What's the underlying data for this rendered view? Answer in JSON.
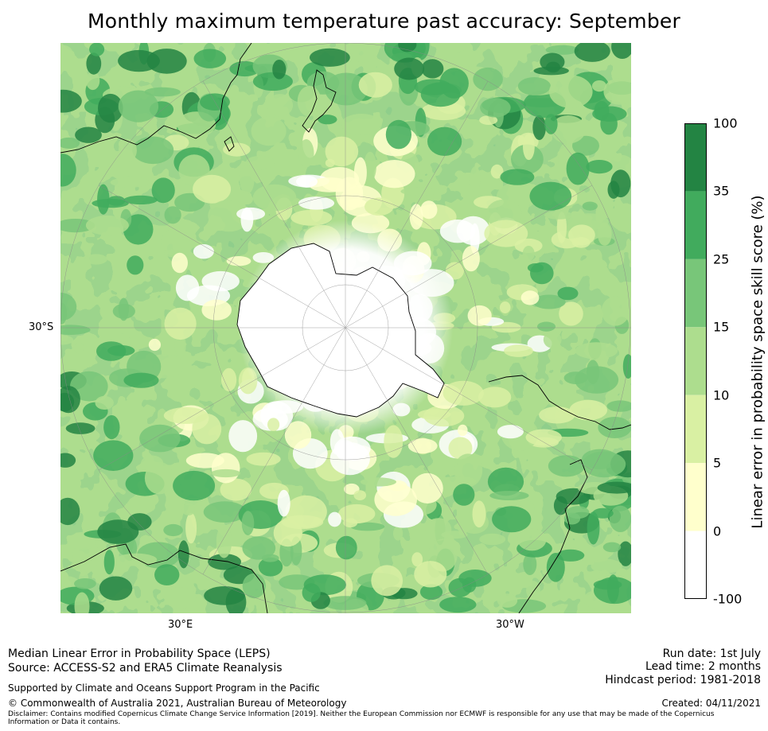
{
  "title": "Monthly maximum temperature past accuracy: September",
  "map": {
    "projection": "south-polar-stereographic",
    "lat_label": "30°S",
    "lon_labels": {
      "left": "30°E",
      "right": "30°W"
    },
    "category_colors": [
      "#ffffff",
      "#ffffcc",
      "#d9f0a3",
      "#addd8e",
      "#78c679",
      "#41ab5d",
      "#238443"
    ],
    "coastline_color": "#000000",
    "gridline_color": "#888888"
  },
  "colorbar": {
    "label": "Linear error in probability space skill score (%)",
    "ticks": [
      "100",
      "35",
      "25",
      "15",
      "10",
      "5",
      "0",
      "-100"
    ],
    "bins": [
      {
        "range": "35 to 100",
        "color": "#238443"
      },
      {
        "range": "25 to 35",
        "color": "#41ab5d"
      },
      {
        "range": "15 to 25",
        "color": "#78c679"
      },
      {
        "range": "10 to 15",
        "color": "#addd8e"
      },
      {
        "range": "5 to 10",
        "color": "#d9f0a3"
      },
      {
        "range": "0 to 5",
        "color": "#ffffcc"
      },
      {
        "range": "-100 to 0",
        "color": "#ffffff"
      }
    ]
  },
  "footer": {
    "method": "Median Linear Error in Probability Space (LEPS)",
    "source": "Source: ACCESS-S2 and ERA5 Climate Reanalysis",
    "support": "Supported by Climate and Oceans Support Program in the Pacific",
    "copyright": "© Commonwealth of Australia 2021, Australian Bureau of Meteorology",
    "disclaimer_line1": "Disclaimer: Contains modified Copernicus Climate Change Service Information [2019]. Neither the European Commission nor ECMWF is responsible for any use that may be made of the Copernicus",
    "disclaimer_line2": "Information or Data it contains.",
    "run_date": "Run date: 1st July",
    "lead_time": "Lead time: 2 months",
    "hindcast": "Hindcast period: 1981-2018",
    "created": "Created: 04/11/2021"
  }
}
